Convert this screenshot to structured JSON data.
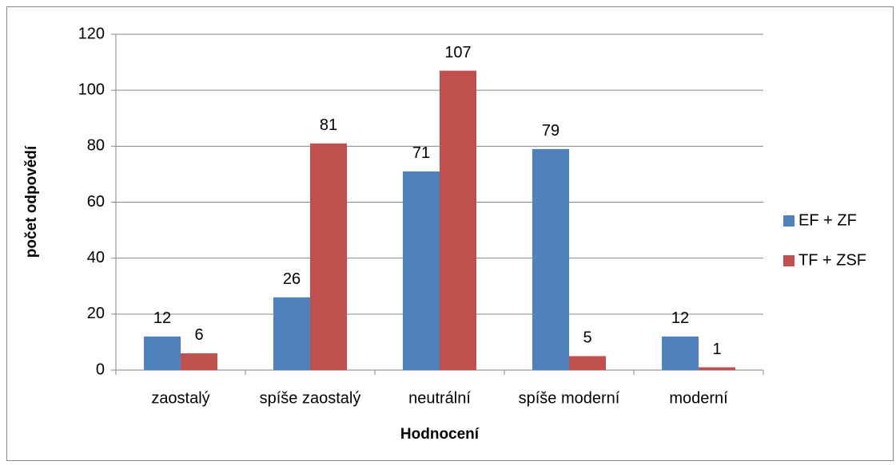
{
  "chart_data": {
    "type": "bar",
    "x_label": "Hodnocení",
    "y_label": "počet odpovědí",
    "categories": [
      "zaostalý",
      "spíše zaostalý",
      "neutrální",
      "spíše moderní",
      "moderní"
    ],
    "series": [
      {
        "name": "EF + ZF",
        "color": "#4f81bd",
        "values": [
          12,
          26,
          71,
          79,
          12
        ]
      },
      {
        "name": "TF + ZSF",
        "color": "#c0504d",
        "values": [
          6,
          81,
          107,
          5,
          1
        ]
      }
    ],
    "ylim": [
      0,
      120
    ],
    "yticks": [
      0,
      20,
      40,
      60,
      80,
      100,
      120
    ],
    "grid": true,
    "legend": "right"
  }
}
